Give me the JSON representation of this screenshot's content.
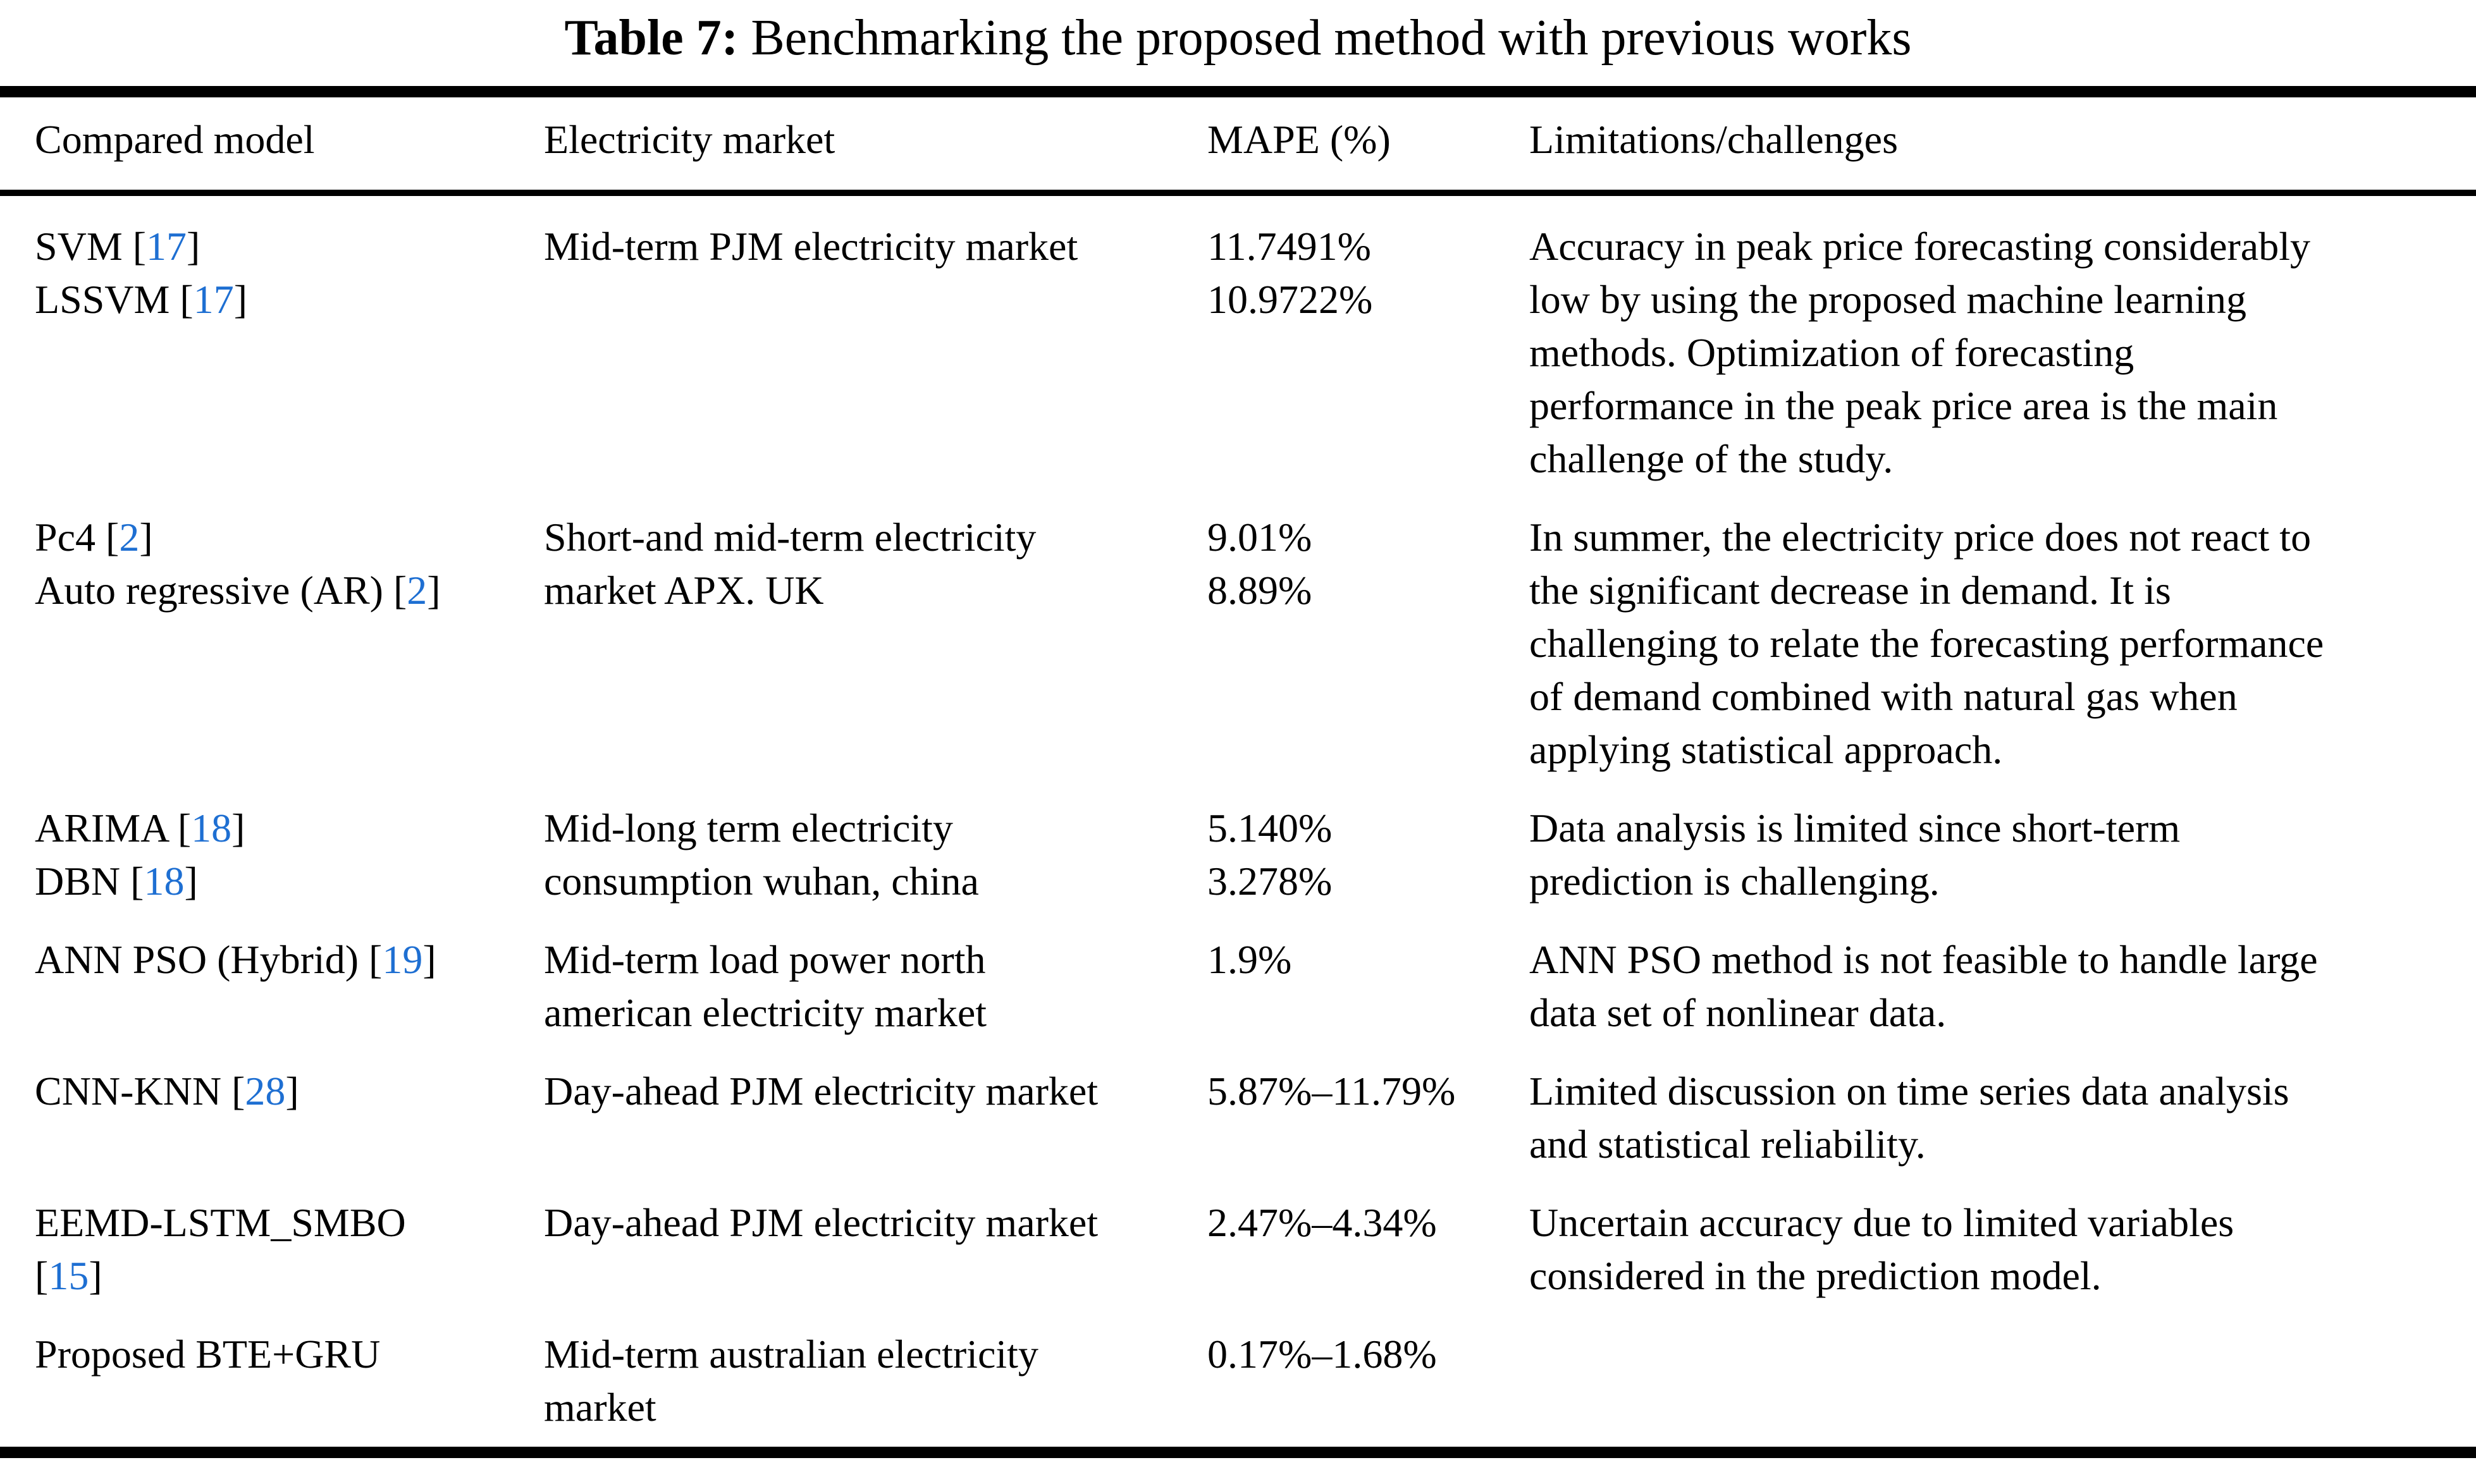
{
  "caption": {
    "label": "Table 7:",
    "text": " Benchmarking the proposed method with previous works"
  },
  "colors": {
    "background": "#ffffff",
    "text": "#000000",
    "reference": "#1e6fd2"
  },
  "table": {
    "headers": [
      "Compared model",
      "Electricity market",
      "MAPE (%)",
      "Limitations/challenges"
    ],
    "rows": [
      {
        "model": [
          {
            "pre": "SVM [",
            "ref": "17",
            "post": "]"
          },
          {
            "pre": "LSSVM [",
            "ref": "17",
            "post": "]"
          }
        ],
        "market": "Mid-term PJM electricity market",
        "mape": "11.7491%\n10.9722%",
        "limitations": "Accuracy in peak price forecasting considerably\nlow by using the proposed machine learning\nmethods. Optimization of forecasting\nperformance in the peak price area is the main\nchallenge of the study."
      },
      {
        "model": [
          {
            "pre": "Pc4 [",
            "ref": "2",
            "post": "]"
          },
          {
            "pre": "Auto regressive (AR) [",
            "ref": "2",
            "post": "]"
          }
        ],
        "market": "Short-and mid-term electricity\nmarket APX. UK",
        "mape": "9.01%\n8.89%",
        "limitations": "In summer, the electricity price does not react to\nthe significant decrease in demand. It is\nchallenging to relate the forecasting performance\nof demand combined with natural gas when\napplying statistical approach."
      },
      {
        "model": [
          {
            "pre": "ARIMA [",
            "ref": "18",
            "post": "]"
          },
          {
            "pre": "DBN [",
            "ref": "18",
            "post": "]"
          }
        ],
        "market": "Mid-long term electricity\nconsumption wuhan, china",
        "mape": "5.140%\n3.278%",
        "limitations": "Data analysis is limited since short-term\nprediction is challenging."
      },
      {
        "model": [
          {
            "pre": "ANN PSO (Hybrid) [",
            "ref": "19",
            "post": "]"
          }
        ],
        "market": "Mid-term load power north\namerican electricity market",
        "mape": "1.9%",
        "limitations": "ANN PSO method is not feasible to handle large\ndata set of nonlinear data."
      },
      {
        "model": [
          {
            "pre": "CNN-KNN [",
            "ref": "28",
            "post": "]"
          }
        ],
        "market": "Day-ahead PJM electricity market",
        "mape": "5.87%–11.79%",
        "limitations": "Limited discussion on time series data analysis\nand statistical reliability."
      },
      {
        "model": [
          {
            "pre": "EEMD-LSTM_SMBO",
            "ref": "",
            "post": ""
          },
          {
            "pre": "[",
            "ref": "15",
            "post": "]"
          }
        ],
        "market": "Day-ahead PJM electricity market",
        "mape": "2.47%–4.34%",
        "limitations": "Uncertain accuracy due to limited variables\nconsidered in the prediction model."
      },
      {
        "model": [
          {
            "pre": "Proposed BTE+GRU",
            "ref": "",
            "post": ""
          }
        ],
        "market": "Mid-term australian electricity\nmarket",
        "mape": "0.17%–1.68%",
        "limitations": ""
      }
    ]
  }
}
